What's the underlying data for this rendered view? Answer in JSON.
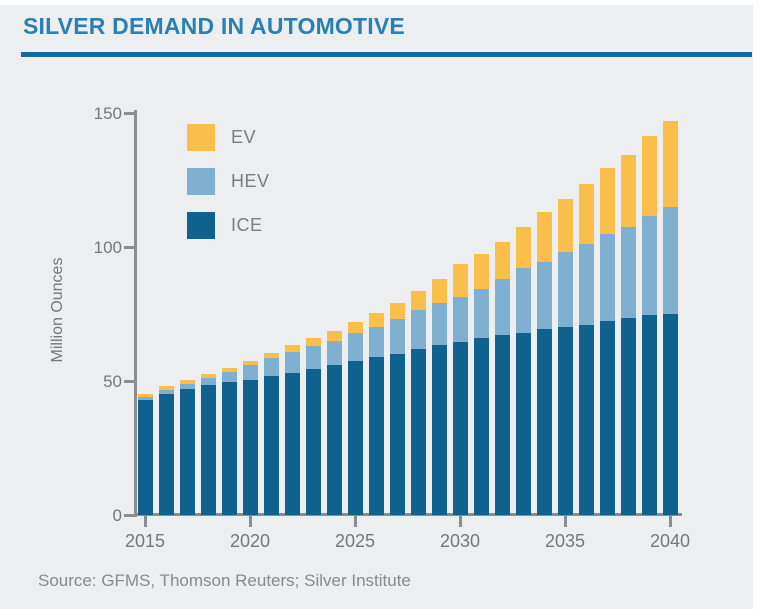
{
  "page": {
    "title": "SILVER DEMAND IN AUTOMOTIVE",
    "source": "Source: GFMS, Thomson Reuters; Silver Institute"
  },
  "colors": {
    "background": "#edeef0",
    "title_blue": "#2a80b2",
    "rule_blue": "#15679f",
    "axis_gray": "#8b8d90",
    "text_gray": "#75777a",
    "ev_yellow": "#f9bf4a",
    "hev_light_blue": "#7fb0d2",
    "ice_dark_blue": "#0f618e"
  },
  "chart_data": {
    "type": "bar",
    "stacked": true,
    "title": "SILVER DEMAND IN AUTOMOTIVE",
    "xlabel": "",
    "ylabel": "Million Ounces",
    "ylim": [
      0,
      150
    ],
    "yticks": [
      0,
      50,
      100,
      150
    ],
    "xticks": [
      2015,
      2020,
      2025,
      2030,
      2035,
      2040
    ],
    "grid": false,
    "legend_position": "top-left-inside",
    "years": [
      2015,
      2016,
      2017,
      2018,
      2019,
      2020,
      2021,
      2022,
      2023,
      2024,
      2025,
      2026,
      2027,
      2028,
      2029,
      2030,
      2031,
      2032,
      2033,
      2034,
      2035,
      2036,
      2037,
      2038,
      2039,
      2040
    ],
    "series": [
      {
        "name": "EV",
        "color": "#f9bf4a",
        "values": [
          1,
          1.5,
          1.5,
          1.5,
          1.5,
          1.5,
          2,
          2.5,
          3,
          3.5,
          4,
          5.5,
          6,
          7,
          9,
          12,
          13,
          14,
          15.5,
          18.5,
          20,
          22.5,
          24.5,
          27,
          30,
          32
        ]
      },
      {
        "name": "HEV",
        "color": "#7fb0d2",
        "values": [
          1,
          1.5,
          2,
          2.5,
          4,
          5.5,
          6.5,
          8,
          8.5,
          9,
          10.5,
          11,
          13,
          14.5,
          15.5,
          17,
          18.5,
          21,
          24,
          25,
          28,
          30,
          32.5,
          34,
          37,
          40
        ]
      },
      {
        "name": "ICE",
        "color": "#0f618e",
        "values": [
          43,
          45,
          47,
          48.5,
          49.5,
          50.5,
          52,
          53,
          54.5,
          56,
          57.5,
          59,
          60,
          62,
          63.5,
          64.5,
          66,
          67,
          68,
          69.5,
          70,
          71,
          72.5,
          73.5,
          74.5,
          75
        ]
      }
    ]
  }
}
